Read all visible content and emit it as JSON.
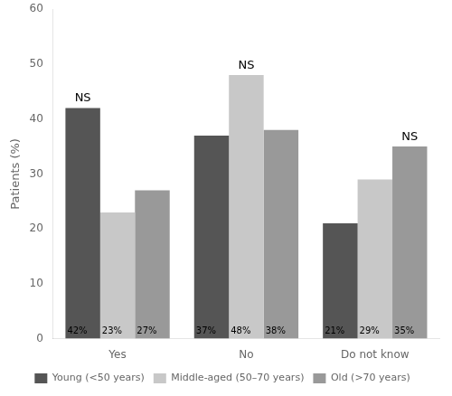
{
  "chart_data": {
    "type": "bar",
    "categories": [
      "Yes",
      "No",
      "Do not know"
    ],
    "series": [
      {
        "name": "Young (<50 years)",
        "color": "#555555",
        "values": [
          42,
          37,
          21
        ],
        "value_labels": [
          "42%",
          "37%",
          "21%"
        ]
      },
      {
        "name": "Middle-aged (50–70 years)",
        "color": "#c8c8c8",
        "values": [
          23,
          48,
          29
        ],
        "value_labels": [
          "23%",
          "48%",
          "29%"
        ]
      },
      {
        "name": "Old (>70 years)",
        "color": "#999999",
        "values": [
          27,
          38,
          35
        ],
        "value_labels": [
          "27%",
          "38%",
          "35%"
        ]
      }
    ],
    "ylabel": "Patients (%)",
    "ylim": [
      0,
      60
    ],
    "yticks": [
      0,
      10,
      20,
      30,
      40,
      50,
      60
    ],
    "annotations": [
      "NS",
      "NS",
      "NS"
    ],
    "data_labels": true,
    "grid": false,
    "legend": "bottom"
  }
}
